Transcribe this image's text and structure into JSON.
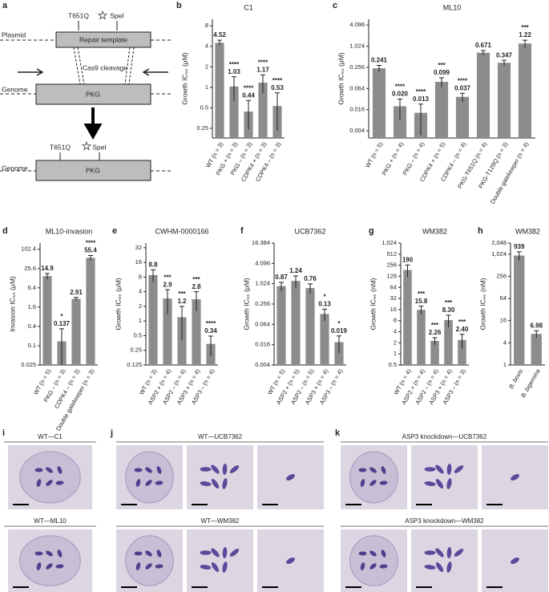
{
  "panel_labels": [
    "a",
    "b",
    "c",
    "d",
    "e",
    "f",
    "g",
    "h",
    "i",
    "j",
    "k"
  ],
  "diagram": {
    "top_mutation": "T651Q",
    "top_site": "SpeI",
    "plasmid": "Plasmid",
    "repair_template": "Repair template",
    "cleavage": "Cas9 cleavage",
    "genome_1": "Genome",
    "gene_1": "PKG",
    "bottom_mutation": "T651Q",
    "bottom_site": "SpeI",
    "genome_2": "Genome",
    "gene_2": "PKG"
  },
  "chart_data": [
    {
      "type": "bar",
      "title": "C1",
      "y_label": "Growth IC₅₀ (μM)",
      "log_y": true,
      "color": "#8c8c8c",
      "categories": [
        "WT (n = 3)",
        "PKG + (n = 3)",
        "PKG – (n = 3)",
        "CDPK4 + (n = 3)",
        "CDPK4 – (n = 3)"
      ],
      "values": [
        4.52,
        1.03,
        0.44,
        1.17,
        0.53
      ],
      "errors": [
        0.4,
        0.4,
        0.2,
        0.35,
        0.3
      ],
      "significance": [
        null,
        "****",
        "****",
        "****",
        "****"
      ],
      "ylim": [
        0.18,
        10
      ],
      "yticks": [
        0.25,
        0.5,
        1,
        2,
        4,
        8
      ]
    },
    {
      "type": "bar",
      "title": "ML10",
      "y_label": "Growth IC₅₀ (μM)",
      "log_y": true,
      "color": "#8c8c8c",
      "categories": [
        "WT (n = 5)",
        "PKG + (n = 4)",
        "PKG – (n = 4)",
        "CDPK4 + (n = 5)",
        "CDPK4 – (n = 4)",
        "PKG-T651Q (n = 4)",
        "PKG-T129Q (n = 3)",
        "Double gatekeeper (n = 4)"
      ],
      "values": [
        0.241,
        0.02,
        0.013,
        0.099,
        0.037,
        0.671,
        0.347,
        1.22
      ],
      "value_labels": [
        "0.241",
        "0.020",
        "0.013",
        "0.099",
        "0.037",
        "0.671",
        "0.347",
        "1.22"
      ],
      "errors": [
        0.05,
        0.012,
        0.01,
        0.03,
        0.01,
        0.1,
        0.06,
        0.3
      ],
      "significance": [
        null,
        "****",
        "****",
        "***",
        "****",
        null,
        null,
        "***"
      ],
      "ylim": [
        0.0025,
        6
      ],
      "yticks": [
        0.004,
        0.016,
        0.064,
        0.256,
        1.024,
        4.096
      ]
    },
    {
      "type": "bar",
      "title": "ML10-invasion",
      "y_label": "Invasion IC₅₀ (μM)",
      "log_y": true,
      "color": "#8c8c8c",
      "categories": [
        "WT (n = 5)",
        "PKG – (n = 3)",
        "CDPK4 – (n = 3)",
        "Double gatekeeper (n = 3)"
      ],
      "values": [
        14.9,
        0.137,
        2.91,
        55.4
      ],
      "errors": [
        3,
        0.2,
        0.3,
        10
      ],
      "significance": [
        null,
        "*",
        null,
        "****"
      ],
      "ylim": [
        0.025,
        160
      ],
      "yticks": [
        0.025,
        0.1,
        0.4,
        1.6,
        6.4,
        25.6,
        102.4
      ]
    },
    {
      "type": "bar",
      "title": "CWHM-0000166",
      "y_label": "Growth IC₅₀ (μM)",
      "log_y": true,
      "color": "#8c8c8c",
      "categories": [
        "WT (n = 3)",
        "ASP2 + (n = 4)",
        "ASP2 – (n = 4)",
        "ASP3 + (n = 4)",
        "ASP3 – (n = 4)"
      ],
      "values": [
        8.8,
        2.9,
        1.2,
        2.8,
        0.34
      ],
      "errors": [
        2.5,
        1.5,
        0.8,
        1.2,
        0.15
      ],
      "significance": [
        null,
        "***",
        "***",
        "***",
        "****"
      ],
      "ylim": [
        0.125,
        40
      ],
      "yticks": [
        0.125,
        0.25,
        0.5,
        1,
        2,
        4,
        8,
        16,
        32
      ]
    },
    {
      "type": "bar",
      "title": "UCB7362",
      "y_label": "Growth IC₅₀ (μM)",
      "log_y": true,
      "color": "#8c8c8c",
      "categories": [
        "WT (n = 5)",
        "ASP2 + (n = 5)",
        "ASP2 – (n = 5)",
        "ASP3 + (n = 4)",
        "ASP3 – (n = 4)"
      ],
      "values": [
        0.87,
        1.24,
        0.76,
        0.13,
        0.019
      ],
      "errors": [
        0.25,
        0.5,
        0.25,
        0.05,
        0.01
      ],
      "significance": [
        null,
        null,
        null,
        "*",
        "*"
      ],
      "ylim": [
        0.004,
        16.384
      ],
      "yticks": [
        0.004,
        0.016,
        0.064,
        0.256,
        1.024,
        4.096,
        16.384
      ]
    },
    {
      "type": "bar",
      "title": "WM382",
      "y_label": "Growth IC₅₀ (nM)",
      "log_y": true,
      "color": "#8c8c8c",
      "categories": [
        "WT (n = 4)",
        "ASP2 + (n = 4)",
        "ASP2 – (n = 4)",
        "ASP3 + (n = 4)",
        "ASP3 – (n = 3)"
      ],
      "values": [
        190,
        15.8,
        2.26,
        8.3,
        2.4
      ],
      "value_labels": [
        "190",
        "15.8",
        "2.26",
        "8.30",
        "2.40"
      ],
      "errors": [
        70,
        4,
        0.5,
        3,
        1
      ],
      "significance": [
        null,
        "***",
        "***",
        "***",
        "***"
      ],
      "ylim": [
        0.5,
        1024
      ],
      "yticks": [
        0.5,
        1,
        2,
        4,
        8,
        16,
        32,
        64,
        128,
        256,
        512,
        {
          "value": 1024,
          "label": "1,024"
        }
      ]
    },
    {
      "type": "bar",
      "title": "WM382",
      "y_label": "Growth IC₅₀ (nM)",
      "log_y": true,
      "color": "#8c8c8c",
      "categories": [
        "B. bovis",
        "B. bigemina"
      ],
      "values": [
        939,
        6.98
      ],
      "errors": [
        250,
        1.5
      ],
      "ylim": [
        1,
        2048
      ],
      "yticks": [
        1,
        4,
        16,
        64,
        256,
        {
          "value": 1024,
          "label": "1,024"
        },
        {
          "value": 2048,
          "label": "2,048"
        }
      ]
    }
  ],
  "micrographs": [
    "WT—C1",
    "WT—ML10",
    "WT—UCB7362",
    "WT—WM382",
    "ASP3 knockdown—UCB7362",
    "ASP3 knockdown—WM382"
  ]
}
